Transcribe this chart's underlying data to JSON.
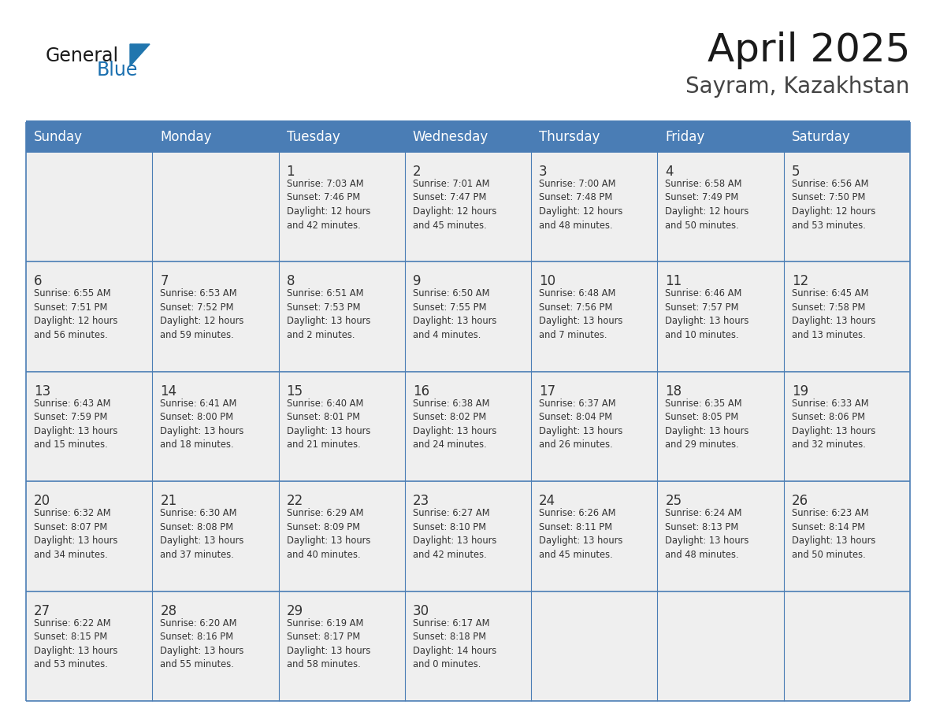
{
  "title": "April 2025",
  "subtitle": "Sayram, Kazakhstan",
  "days_of_week": [
    "Sunday",
    "Monday",
    "Tuesday",
    "Wednesday",
    "Thursday",
    "Friday",
    "Saturday"
  ],
  "header_bg": "#4a7db5",
  "header_text_color": "#FFFFFF",
  "row_bg": "#EFEFEF",
  "cell_text_color": "#333333",
  "day_number_color": "#333333",
  "grid_color": "#4a7db5",
  "title_color": "#1a1a1a",
  "subtitle_color": "#333333",
  "logo_black": "General",
  "logo_blue": "Blue",
  "logo_triangle_color": "#2176ae",
  "logo_blue_color": "#1a6faf",
  "calendar_data": [
    [
      {
        "day": null,
        "info": null
      },
      {
        "day": null,
        "info": null
      },
      {
        "day": 1,
        "info": "Sunrise: 7:03 AM\nSunset: 7:46 PM\nDaylight: 12 hours\nand 42 minutes."
      },
      {
        "day": 2,
        "info": "Sunrise: 7:01 AM\nSunset: 7:47 PM\nDaylight: 12 hours\nand 45 minutes."
      },
      {
        "day": 3,
        "info": "Sunrise: 7:00 AM\nSunset: 7:48 PM\nDaylight: 12 hours\nand 48 minutes."
      },
      {
        "day": 4,
        "info": "Sunrise: 6:58 AM\nSunset: 7:49 PM\nDaylight: 12 hours\nand 50 minutes."
      },
      {
        "day": 5,
        "info": "Sunrise: 6:56 AM\nSunset: 7:50 PM\nDaylight: 12 hours\nand 53 minutes."
      }
    ],
    [
      {
        "day": 6,
        "info": "Sunrise: 6:55 AM\nSunset: 7:51 PM\nDaylight: 12 hours\nand 56 minutes."
      },
      {
        "day": 7,
        "info": "Sunrise: 6:53 AM\nSunset: 7:52 PM\nDaylight: 12 hours\nand 59 minutes."
      },
      {
        "day": 8,
        "info": "Sunrise: 6:51 AM\nSunset: 7:53 PM\nDaylight: 13 hours\nand 2 minutes."
      },
      {
        "day": 9,
        "info": "Sunrise: 6:50 AM\nSunset: 7:55 PM\nDaylight: 13 hours\nand 4 minutes."
      },
      {
        "day": 10,
        "info": "Sunrise: 6:48 AM\nSunset: 7:56 PM\nDaylight: 13 hours\nand 7 minutes."
      },
      {
        "day": 11,
        "info": "Sunrise: 6:46 AM\nSunset: 7:57 PM\nDaylight: 13 hours\nand 10 minutes."
      },
      {
        "day": 12,
        "info": "Sunrise: 6:45 AM\nSunset: 7:58 PM\nDaylight: 13 hours\nand 13 minutes."
      }
    ],
    [
      {
        "day": 13,
        "info": "Sunrise: 6:43 AM\nSunset: 7:59 PM\nDaylight: 13 hours\nand 15 minutes."
      },
      {
        "day": 14,
        "info": "Sunrise: 6:41 AM\nSunset: 8:00 PM\nDaylight: 13 hours\nand 18 minutes."
      },
      {
        "day": 15,
        "info": "Sunrise: 6:40 AM\nSunset: 8:01 PM\nDaylight: 13 hours\nand 21 minutes."
      },
      {
        "day": 16,
        "info": "Sunrise: 6:38 AM\nSunset: 8:02 PM\nDaylight: 13 hours\nand 24 minutes."
      },
      {
        "day": 17,
        "info": "Sunrise: 6:37 AM\nSunset: 8:04 PM\nDaylight: 13 hours\nand 26 minutes."
      },
      {
        "day": 18,
        "info": "Sunrise: 6:35 AM\nSunset: 8:05 PM\nDaylight: 13 hours\nand 29 minutes."
      },
      {
        "day": 19,
        "info": "Sunrise: 6:33 AM\nSunset: 8:06 PM\nDaylight: 13 hours\nand 32 minutes."
      }
    ],
    [
      {
        "day": 20,
        "info": "Sunrise: 6:32 AM\nSunset: 8:07 PM\nDaylight: 13 hours\nand 34 minutes."
      },
      {
        "day": 21,
        "info": "Sunrise: 6:30 AM\nSunset: 8:08 PM\nDaylight: 13 hours\nand 37 minutes."
      },
      {
        "day": 22,
        "info": "Sunrise: 6:29 AM\nSunset: 8:09 PM\nDaylight: 13 hours\nand 40 minutes."
      },
      {
        "day": 23,
        "info": "Sunrise: 6:27 AM\nSunset: 8:10 PM\nDaylight: 13 hours\nand 42 minutes."
      },
      {
        "day": 24,
        "info": "Sunrise: 6:26 AM\nSunset: 8:11 PM\nDaylight: 13 hours\nand 45 minutes."
      },
      {
        "day": 25,
        "info": "Sunrise: 6:24 AM\nSunset: 8:13 PM\nDaylight: 13 hours\nand 48 minutes."
      },
      {
        "day": 26,
        "info": "Sunrise: 6:23 AM\nSunset: 8:14 PM\nDaylight: 13 hours\nand 50 minutes."
      }
    ],
    [
      {
        "day": 27,
        "info": "Sunrise: 6:22 AM\nSunset: 8:15 PM\nDaylight: 13 hours\nand 53 minutes."
      },
      {
        "day": 28,
        "info": "Sunrise: 6:20 AM\nSunset: 8:16 PM\nDaylight: 13 hours\nand 55 minutes."
      },
      {
        "day": 29,
        "info": "Sunrise: 6:19 AM\nSunset: 8:17 PM\nDaylight: 13 hours\nand 58 minutes."
      },
      {
        "day": 30,
        "info": "Sunrise: 6:17 AM\nSunset: 8:18 PM\nDaylight: 14 hours\nand 0 minutes."
      },
      {
        "day": null,
        "info": null
      },
      {
        "day": null,
        "info": null
      },
      {
        "day": null,
        "info": null
      }
    ]
  ]
}
